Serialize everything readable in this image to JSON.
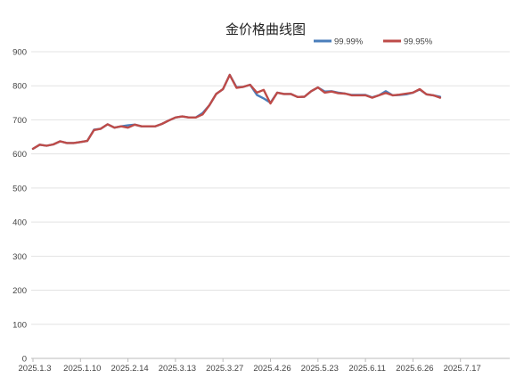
{
  "chart_data": {
    "type": "line",
    "title": "金价格曲线图",
    "ylim": [
      0,
      900
    ],
    "y_ticks": [
      0,
      100,
      200,
      300,
      400,
      500,
      600,
      700,
      800,
      900
    ],
    "x_tick_labels": [
      "2025.1.3",
      "2025.1.10",
      "2025.2.14",
      "2025.3.13",
      "2025.3.27",
      "2025.4.26",
      "2025.5.23",
      "2025.6.11",
      "2025.6.26",
      "2025.7.17"
    ],
    "x_tick_positions": [
      0,
      7,
      14,
      21,
      28,
      35,
      42,
      49,
      56,
      63
    ],
    "x_max": 70,
    "grid": "horizontal",
    "legend_position": "top-right",
    "series": [
      {
        "name": "99.99%",
        "color": "#4a7ebb",
        "values": [
          615,
          627,
          624,
          628,
          637,
          632,
          632,
          635,
          638,
          671,
          674,
          687,
          677,
          681,
          684,
          686,
          681,
          681,
          681,
          688,
          698,
          707,
          710,
          707,
          707,
          720,
          743,
          776,
          790,
          832,
          796,
          797,
          803,
          773,
          763,
          750,
          780,
          776,
          776,
          767,
          768,
          784,
          795,
          783,
          784,
          780,
          777,
          773,
          773,
          773,
          766,
          772,
          784,
          772,
          773,
          775,
          780,
          789,
          775,
          772,
          768
        ]
      },
      {
        "name": "99.95%",
        "color": "#be4b48",
        "values": [
          615,
          627,
          624,
          628,
          637,
          632,
          632,
          635,
          638,
          670,
          674,
          687,
          677,
          681,
          677,
          686,
          681,
          681,
          681,
          688,
          698,
          707,
          710,
          707,
          707,
          716,
          743,
          776,
          790,
          832,
          794,
          797,
          803,
          780,
          788,
          748,
          780,
          776,
          776,
          767,
          768,
          784,
          795,
          780,
          783,
          778,
          777,
          772,
          772,
          772,
          765,
          772,
          779,
          772,
          774,
          777,
          780,
          790,
          775,
          772,
          765
        ]
      }
    ]
  }
}
